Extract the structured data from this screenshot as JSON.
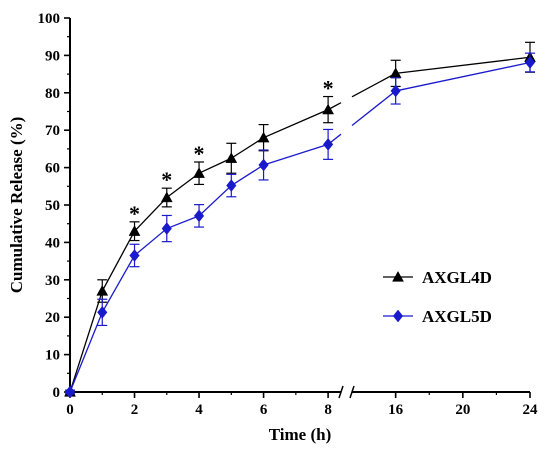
{
  "chart_data": {
    "type": "line",
    "title": "",
    "xlabel": "Time (h)",
    "ylabel": "Cumulative Release (%)",
    "ylim": [
      0,
      100
    ],
    "y_ticks": [
      0,
      10,
      20,
      30,
      40,
      50,
      60,
      70,
      80,
      90,
      100
    ],
    "x_axis": {
      "broken": true,
      "break_after": 8,
      "break_before": 16,
      "ticks_left_segment": [
        0,
        2,
        4,
        6,
        8
      ],
      "ticks_right_segment": [
        16,
        20,
        24
      ],
      "left_segment_range": [
        0,
        8.4
      ],
      "right_segment_range": [
        13.4,
        24
      ]
    },
    "grid": false,
    "legend_position": "right",
    "series": [
      {
        "name": "AXGL4D",
        "color": "#000000",
        "marker": "triangle",
        "x": [
          0,
          1,
          2,
          3,
          4,
          5,
          6,
          8,
          16,
          24
        ],
        "y": [
          0,
          27,
          43,
          52,
          58.5,
          62.5,
          68,
          75.5,
          85.2,
          89.5
        ],
        "error": [
          0.5,
          3,
          2.5,
          2.5,
          3,
          4,
          3.5,
          3.5,
          3.5,
          4
        ]
      },
      {
        "name": "AXGL5D",
        "color": "#1a1acd",
        "marker": "diamond",
        "x": [
          0,
          1,
          2,
          3,
          4,
          5,
          6,
          8,
          16,
          24
        ],
        "y": [
          0,
          21.3,
          36.5,
          43.7,
          47.1,
          55.2,
          60.7,
          66.2,
          80.5,
          88.1
        ],
        "error": [
          0.5,
          3.5,
          3,
          3.5,
          3,
          3,
          4,
          4,
          3.5,
          2.5
        ]
      }
    ],
    "annotations": [
      {
        "text": "*",
        "x": 2
      },
      {
        "text": "*",
        "x": 3
      },
      {
        "text": "*",
        "x": 4
      },
      {
        "text": "*",
        "x": 8
      }
    ]
  }
}
